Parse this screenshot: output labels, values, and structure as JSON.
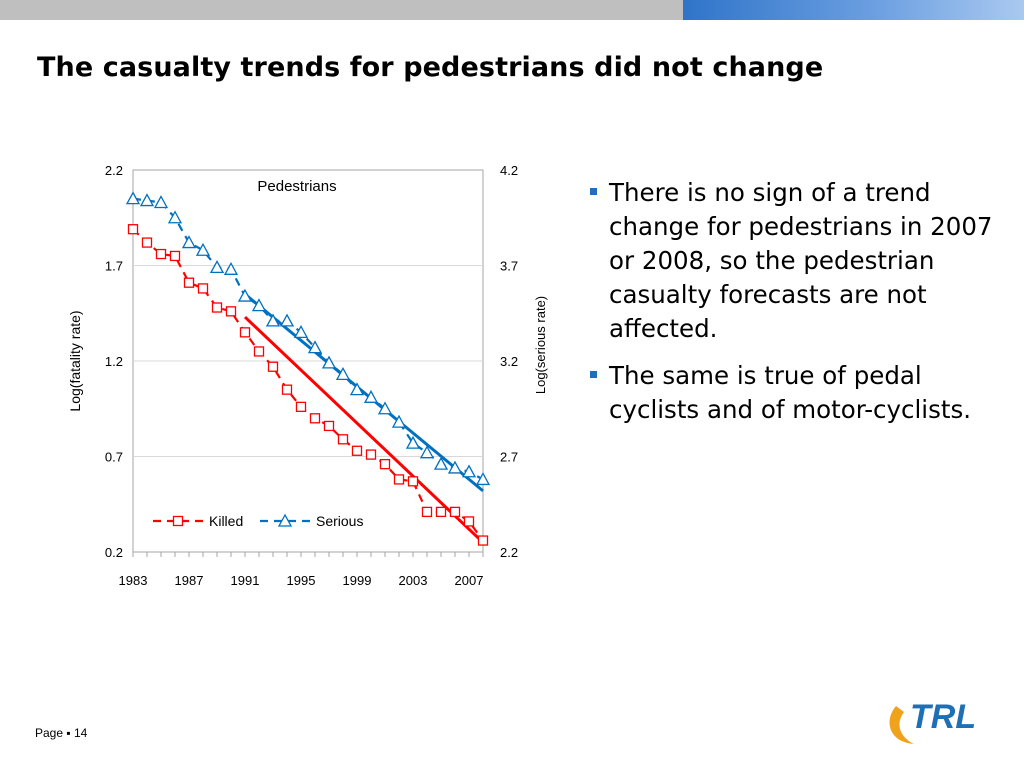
{
  "slide": {
    "title": "The casualty trends for pedestrians did not change",
    "bullets": [
      "There is no sign of a trend change for pedestrians in 2007 or 2008, so the pedestrian casualty forecasts are not affected.",
      "The same is true of pedal cyclists and of motor-cyclists."
    ],
    "footer_page_label": "Page",
    "footer_separator": "▪",
    "footer_page_number": "14",
    "logo_text": "TRL",
    "colors": {
      "topbar_gray": "#bfbfbf",
      "topbar_blue": "#2f74c9",
      "bullet": "#1f6fc0",
      "logo_blue": "#1f6fb4",
      "logo_orange": "#f0a31a"
    }
  },
  "chart_data": {
    "type": "line",
    "title": "Pedestrians",
    "ylabel": "Log(fatality rate)",
    "y2label": "Log(serious rate)",
    "ylim": [
      0.2,
      2.2
    ],
    "y2lim": [
      2.2,
      4.2
    ],
    "yticks": [
      "0.2",
      "0.7",
      "1.2",
      "1.7",
      "2.2"
    ],
    "y2ticks": [
      "2.2",
      "2.7",
      "3.2",
      "3.7",
      "4.2"
    ],
    "xticks": [
      "1983",
      "1987",
      "1991",
      "1995",
      "1999",
      "2003",
      "2007"
    ],
    "xlim": [
      1983,
      2008
    ],
    "grid": true,
    "legend": "bottom-center",
    "series": [
      {
        "name": "Killed",
        "axis": "left",
        "color": "#ff0000",
        "marker": "square",
        "x": [
          1983,
          1984,
          1985,
          1986,
          1987,
          1988,
          1989,
          1990,
          1991,
          1992,
          1993,
          1994,
          1995,
          1996,
          1997,
          1998,
          1999,
          2000,
          2001,
          2002,
          2003,
          2004,
          2005,
          2006,
          2007,
          2008
        ],
        "values": [
          1.89,
          1.82,
          1.76,
          1.75,
          1.61,
          1.58,
          1.48,
          1.46,
          1.35,
          1.25,
          1.17,
          1.05,
          0.96,
          0.9,
          0.86,
          0.79,
          0.73,
          0.71,
          0.66,
          0.58,
          0.57,
          0.41,
          0.41,
          0.41,
          0.36,
          0.26
        ]
      },
      {
        "name": "Serious",
        "axis": "right",
        "color": "#0070c0",
        "marker": "triangle",
        "x": [
          1983,
          1984,
          1985,
          1986,
          1987,
          1988,
          1989,
          1990,
          1991,
          1992,
          1993,
          1994,
          1995,
          1996,
          1997,
          1998,
          1999,
          2000,
          2001,
          2002,
          2003,
          2004,
          2005,
          2006,
          2007,
          2008
        ],
        "values": [
          4.05,
          4.04,
          4.03,
          3.95,
          3.82,
          3.78,
          3.69,
          3.68,
          3.54,
          3.49,
          3.41,
          3.41,
          3.35,
          3.27,
          3.19,
          3.13,
          3.05,
          3.01,
          2.95,
          2.88,
          2.77,
          2.72,
          2.66,
          2.64,
          2.62,
          2.58
        ]
      }
    ],
    "trend_lines": [
      {
        "series": "Killed",
        "axis": "left",
        "color": "#ff0000",
        "x": [
          1991,
          2008
        ],
        "values": [
          1.43,
          0.25
        ]
      },
      {
        "series": "Serious",
        "axis": "right",
        "color": "#0070c0",
        "x": [
          1991,
          2008
        ],
        "values": [
          3.55,
          2.52
        ]
      }
    ]
  }
}
